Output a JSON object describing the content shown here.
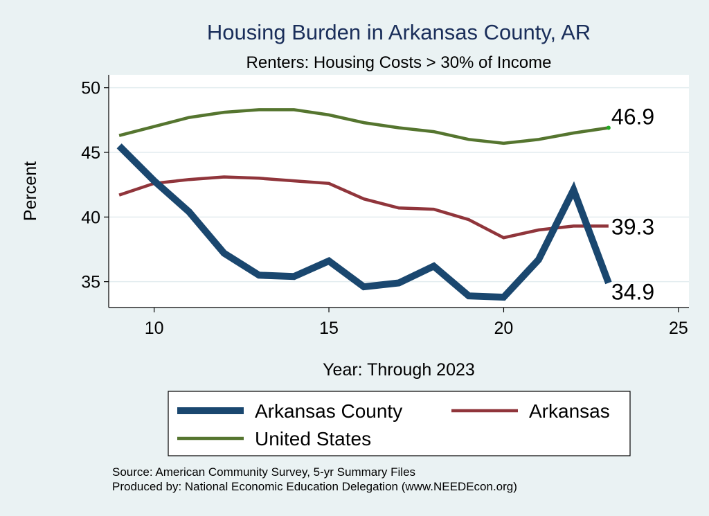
{
  "chart_data": {
    "type": "line",
    "title": "Housing Burden in Arkansas County, AR",
    "subtitle": "Renters: Housing Costs > 30% of Income",
    "xlabel": "Year: Through 2023",
    "ylabel": "Percent",
    "xlim": [
      8.7,
      25.3
    ],
    "ylim": [
      33.0,
      51.0
    ],
    "x_ticks": [
      10,
      15,
      20,
      25
    ],
    "y_ticks": [
      35,
      40,
      45,
      50
    ],
    "grid": "horizontal",
    "legend_position": "bottom",
    "x": [
      9,
      10,
      11,
      12,
      13,
      14,
      15,
      16,
      17,
      18,
      19,
      20,
      21,
      22,
      23
    ],
    "series": [
      {
        "name": "Arkansas County",
        "color": "#1a476f",
        "values": [
          45.5,
          42.8,
          40.4,
          37.2,
          35.5,
          35.4,
          36.6,
          34.6,
          34.9,
          36.2,
          33.9,
          33.8,
          36.7,
          42.1,
          34.9
        ],
        "end_label": "34.9"
      },
      {
        "name": "Arkansas",
        "color": "#90353b",
        "values": [
          41.7,
          42.6,
          42.9,
          43.1,
          43.0,
          42.8,
          42.6,
          41.4,
          40.7,
          40.6,
          39.8,
          38.4,
          39.0,
          39.3,
          39.3
        ],
        "end_label": "39.3"
      },
      {
        "name": "United States",
        "color": "#55752f",
        "values": [
          46.3,
          47.0,
          47.7,
          48.1,
          48.3,
          48.3,
          47.9,
          47.3,
          46.9,
          46.6,
          46.0,
          45.7,
          46.0,
          46.5,
          46.9
        ],
        "end_label": "46.9"
      }
    ],
    "notes": [
      "Source: American Community Survey, 5-yr Summary Files",
      "Produced by: National Economic Education Delegation (www.NEEDEcon.org)"
    ]
  }
}
